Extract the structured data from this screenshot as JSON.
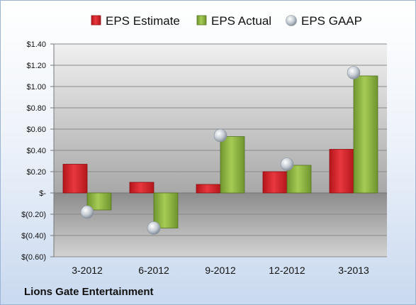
{
  "company_label": "Lions Gate Entertainment",
  "chart_data": {
    "type": "bar",
    "categories": [
      "3-2012",
      "6-2012",
      "9-2012",
      "12-2012",
      "3-2013"
    ],
    "series": [
      {
        "name": "EPS Estimate",
        "type": "bar",
        "color": "#d42027",
        "values": [
          0.27,
          0.1,
          0.08,
          0.2,
          0.41
        ]
      },
      {
        "name": "EPS Actual",
        "type": "bar",
        "color": "#8fb53e",
        "values": [
          -0.16,
          -0.33,
          0.53,
          0.26,
          1.1
        ]
      },
      {
        "name": "EPS GAAP",
        "type": "scatter",
        "color": "#b5bec8",
        "values": [
          -0.18,
          -0.33,
          0.54,
          0.27,
          1.13
        ]
      }
    ],
    "ylim": [
      -0.6,
      1.4
    ],
    "yticks": [
      1.4,
      1.2,
      1.0,
      0.8,
      0.6,
      0.4,
      0.2,
      0,
      -0.2,
      -0.4,
      -0.6
    ],
    "ytick_labels": [
      "$1.40",
      "$1.20",
      "$1.00",
      "$0.80",
      "$0.60",
      "$0.40",
      "$0.20",
      "$-",
      "$(0.20)",
      "$(0.40)",
      "$(0.60)"
    ],
    "grid": true,
    "legend_position": "top"
  }
}
